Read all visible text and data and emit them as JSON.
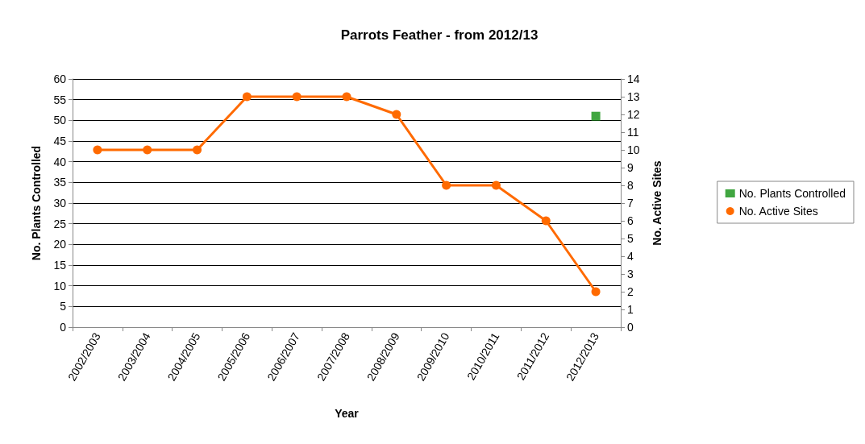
{
  "chart_data": {
    "type": "line",
    "title": "Parrots Feather - from 2012/13",
    "xlabel": "Year",
    "ylabel": "No. Plants Controlled",
    "y2label": "No. Active Sites",
    "categories": [
      "2002/2003",
      "2003/2004",
      "2004/2005",
      "2005/2006",
      "2006/2007",
      "2007/2008",
      "2008/2009",
      "2009/2010",
      "2010/2011",
      "2011/2012",
      "2012/2013"
    ],
    "series": [
      {
        "name": "No. Plants Controlled",
        "type": "scatter",
        "marker": "square",
        "color": "#109010",
        "values": [
          null,
          null,
          null,
          null,
          null,
          null,
          null,
          null,
          null,
          null,
          51
        ]
      },
      {
        "name": "No. Active Sites",
        "marker": "circle",
        "axis": "y2",
        "color": "#ff6a00",
        "values": [
          10,
          10,
          10,
          13,
          13,
          13,
          12,
          8,
          8,
          6,
          2
        ]
      }
    ],
    "ylim": [
      0,
      60
    ],
    "yticks": [
      0,
      5,
      10,
      15,
      20,
      25,
      30,
      35,
      40,
      45,
      50,
      55,
      60
    ],
    "y2lim": [
      0,
      14
    ],
    "y2ticks": [
      0,
      1,
      2,
      3,
      4,
      5,
      6,
      7,
      8,
      9,
      10,
      11,
      12,
      13,
      14
    ],
    "grid": "y",
    "legend": "right",
    "line_style": "solid"
  }
}
